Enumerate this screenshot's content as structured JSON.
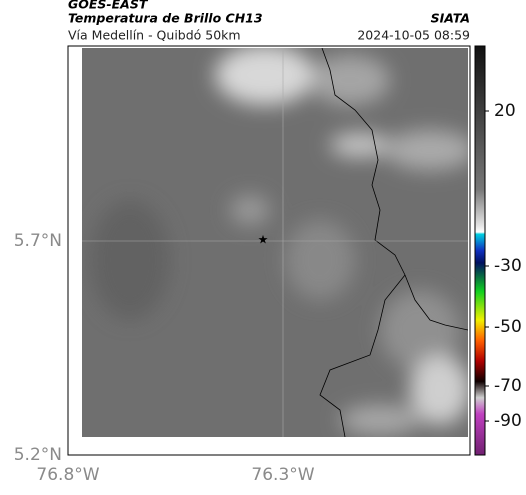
{
  "header": {
    "satellite": "GOES-EAST",
    "title": "Temperatura de Brillo CH13",
    "source": "SIATA",
    "subtitle": "Vía Medellín - Quibdó 50km",
    "datetime": "2024-10-05 08:59"
  },
  "map": {
    "lat_ticks": [
      "5.7°N",
      "5.2°N"
    ],
    "lon_ticks": [
      "76.8°W",
      "76.3°W"
    ]
  },
  "colorbar": {
    "ticks": [
      20,
      -30,
      -50,
      -70,
      -90
    ]
  }
}
